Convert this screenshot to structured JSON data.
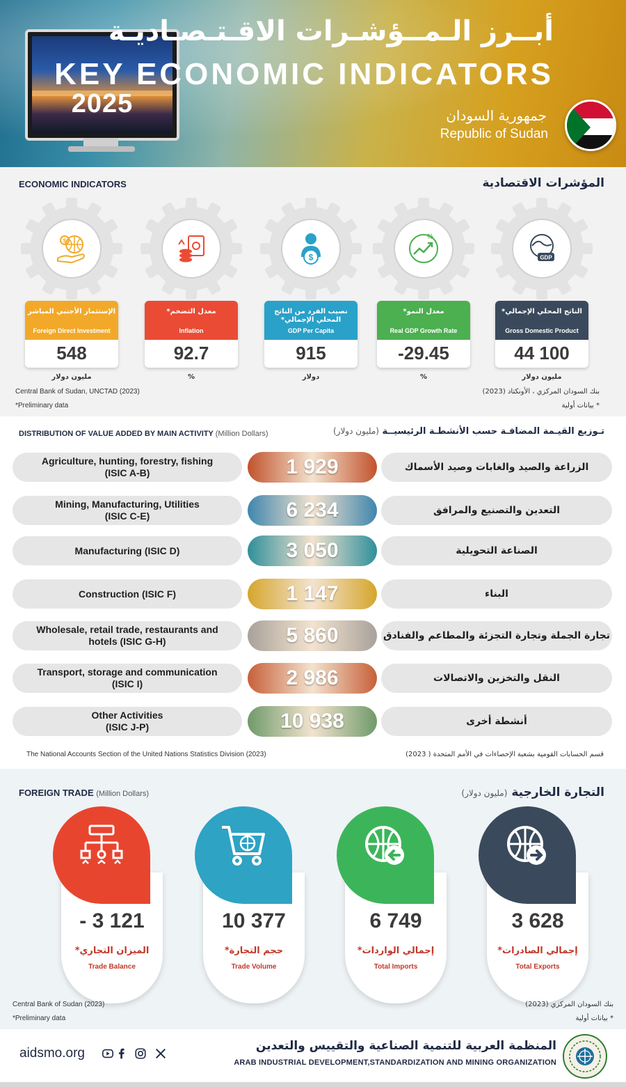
{
  "header": {
    "title_ar": "أبــرز الـمــؤشـرات الاقـتـصـاديـة",
    "title_en": "KEY ECONOMIC INDICATORS",
    "year": "2025",
    "country_ar": "جمهورية السودان",
    "country_en": "Republic of Sudan",
    "flag_colors": [
      "#d21034",
      "#ffffff",
      "#111111",
      "#007229"
    ]
  },
  "economic": {
    "heading_en": "ECONOMIC INDICATORS",
    "heading_ar": "المؤشرات الاقتصادية",
    "cards": [
      {
        "icon": "gdp-icon",
        "ar": "الناتج المحلي الإجمالي*",
        "en": "Gross Domestic Product",
        "value": "44 100",
        "unit": "مليون دولار",
        "color": "#3a4a5c"
      },
      {
        "icon": "growth-chart-icon",
        "ar": "معدل النمو*",
        "en": "Real GDP Growth Rate",
        "value": "-29.45",
        "unit": "%",
        "color": "#4caf50"
      },
      {
        "icon": "person-dollar-icon",
        "ar": "نصيب الفرد من الناتج المحلي الإجمالي*",
        "en": "GDP Per Capita",
        "value": "915",
        "unit": "دولار",
        "color": "#2aa1c8"
      },
      {
        "icon": "money-stack-icon",
        "ar": "معدل التضخم*",
        "en": "Inflation",
        "value": "92.7",
        "unit": "%",
        "color": "#ea4b35"
      },
      {
        "icon": "globe-investment-icon",
        "ar": "الإستثمار الأجنبي المباشر",
        "en": "Foreign Direct Investment",
        "value": "548",
        "unit": "مليون دولار",
        "color": "#f2a92a"
      }
    ],
    "source_en": "Central Bank of Sudan, UNCTAD (2023)",
    "source_ar": "بنك السودان المركزي ، الأونكتاد (2023)",
    "prelim_en": "*Preliminary data",
    "prelim_ar": "* بيانات أولية"
  },
  "value_added": {
    "heading_en": "DISTRIBUTION OF VALUE ADDED BY  MAIN ACTIVITY",
    "heading_en_unit": "(Million Dollars)",
    "heading_ar": "تـوزيع القيـمة المضافـة حسب الأنشطـة الرئيسيــة",
    "heading_ar_unit": "(مليون دولار)",
    "rows": [
      {
        "en": "Agriculture, hunting, forestry, fishing\n(ISIC A-B)",
        "ar": "الزراعة والصيد والغابات وصيد الأسماك",
        "value": "1 929",
        "color": "#c2532d"
      },
      {
        "en": "Mining, Manufacturing, Utilities\n(ISIC C-E)",
        "ar": "التعدين والتصنيع والمرافق",
        "value": "6 234",
        "color": "#3f86ad"
      },
      {
        "en": "Manufacturing (ISIC D)",
        "ar": "الصناعة التحويلية",
        "value": "3 050",
        "color": "#2f8f9b"
      },
      {
        "en": "Construction (ISIC F)",
        "ar": "البناء",
        "value": "1 147",
        "color": "#d5a62c"
      },
      {
        "en": "Wholesale, retail trade, restaurants and\nhotels (ISIC G-H)",
        "ar": "تجارة الجملة وتجارة التجزئة والمطاعم والفنادق",
        "value": "5 860",
        "color": "#a8a29a"
      },
      {
        "en": "Transport, storage and communication\n(ISIC I)",
        "ar": "النقل والتخزين والاتصالات",
        "value": "2 986",
        "color": "#c7603a"
      },
      {
        "en": "Other Activities\n(ISIC J-P)",
        "ar": "أنشطة أخرى",
        "value": "10 938",
        "color": "#6f9a6a"
      }
    ],
    "source_en": "The National Accounts Section of the United Nations Statistics Division (2023)",
    "source_ar": "قسم الحسابات القومية بشعبة الإحصاءات في الأمم المتحدة ( 2023)"
  },
  "trade": {
    "heading_en": "FOREIGN TRADE",
    "heading_en_unit": "(Million Dollars)",
    "heading_ar": "التجارة الخارجية",
    "heading_ar_unit": "(مليون دولار)",
    "items": [
      {
        "icon": "trade-balance-icon",
        "value": "- 3 121",
        "ar": "الميزان التجاري*",
        "en": "Trade Balance",
        "color": "#e8452f"
      },
      {
        "icon": "shopping-cart-icon",
        "value": "10 377",
        "ar": "حجم التجارة*",
        "en": "Trade Volume",
        "color": "#2ea3c4"
      },
      {
        "icon": "globe-import-icon",
        "value": "6 749",
        "ar": "إجمالي الواردات*",
        "en": "Total Imports",
        "color": "#3cb55a"
      },
      {
        "icon": "globe-export-icon",
        "value": "3 628",
        "ar": "إجمالي الصادرات*",
        "en": "Total Exports",
        "color": "#3a4a5c"
      }
    ],
    "source_en": "Central Bank of Sudan (2023)",
    "source_ar": "بنك السودان المركزي (2023)",
    "prelim_en": "*Preliminary data",
    "prelim_ar": "* بيانات أولية"
  },
  "footer": {
    "site": "aidsmo.org",
    "social": [
      "youtube-icon",
      "facebook-icon",
      "instagram-icon",
      "x-icon"
    ],
    "org_ar": "المنظمة العربية للتنمية الصناعية والتقييس والتعدين",
    "org_en": "ARAB INDUSTRIAL DEVELOPMENT,STANDARDIZATION AND MINING ORGANIZATION"
  }
}
